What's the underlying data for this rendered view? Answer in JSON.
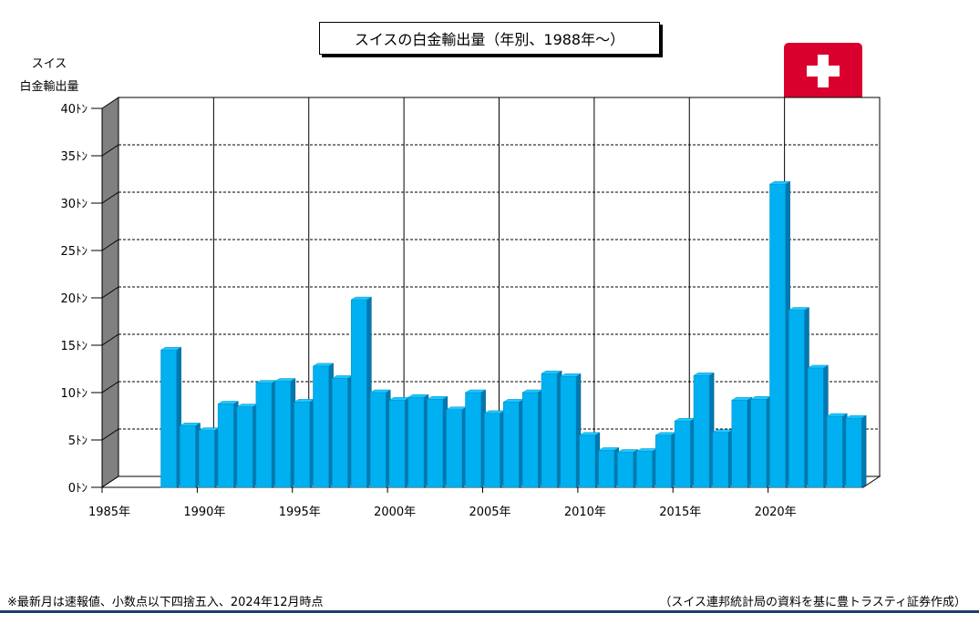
{
  "title": "スイスの白金輸出量（年別、1988年～）",
  "y_axis_label_line1": "スイス",
  "y_axis_label_line2": "白金輸出量",
  "flag_icon": "swiss-flag-icon",
  "footnote_left": "※最新月は速報値、小数点以下四捨五入、2024年12月時点",
  "footnote_right": "（スイス連邦統計局の資料を基に豊トラスティ証券作成）",
  "colors": {
    "bar_face": "#00b0f0",
    "bar_side": "#0078b0",
    "bar_top": "#1ec8ff",
    "wall": "#808080",
    "flag_red": "#d9002e",
    "rule": "#1f3b6e"
  },
  "chart_data": {
    "type": "bar",
    "title": "スイスの白金輸出量（年別、1988年～）",
    "ylabel": "スイス 白金輸出量",
    "ylim": [
      0,
      40
    ],
    "y_ticks": [
      0,
      5,
      10,
      15,
      20,
      25,
      30,
      35,
      40
    ],
    "y_tick_labels": [
      "0ﾄﾝ",
      "5ﾄﾝ",
      "10ﾄﾝ",
      "15ﾄﾝ",
      "20ﾄﾝ",
      "25ﾄﾝ",
      "30ﾄﾝ",
      "35ﾄﾝ",
      "40ﾄﾝ"
    ],
    "x_range": [
      1985,
      2024
    ],
    "x_tick_labels": [
      "1985年",
      "1990年",
      "1995年",
      "2000年",
      "2005年",
      "2010年",
      "2015年",
      "2020年"
    ],
    "x_tick_years": [
      1985,
      1990,
      1995,
      2000,
      2005,
      2010,
      2015,
      2020
    ],
    "grid": "horizontal dashed, vertical solid",
    "categories": [
      1988,
      1989,
      1990,
      1991,
      1992,
      1993,
      1994,
      1995,
      1996,
      1997,
      1998,
      1999,
      2000,
      2001,
      2002,
      2003,
      2004,
      2005,
      2006,
      2007,
      2008,
      2009,
      2010,
      2011,
      2012,
      2013,
      2014,
      2015,
      2016,
      2017,
      2018,
      2019,
      2020,
      2021,
      2022,
      2023,
      2024
    ],
    "values": [
      14.5,
      6.5,
      6,
      8.8,
      8.5,
      11,
      11.2,
      9,
      12.8,
      11.5,
      19.8,
      10,
      9.2,
      9.5,
      9.3,
      8.2,
      10,
      7.8,
      9,
      10,
      12,
      11.7,
      5.5,
      3.9,
      3.7,
      3.8,
      5.5,
      7,
      11.8,
      5.8,
      9.2,
      9.3,
      32,
      18.7,
      12.6,
      7.5,
      7.3
    ]
  }
}
